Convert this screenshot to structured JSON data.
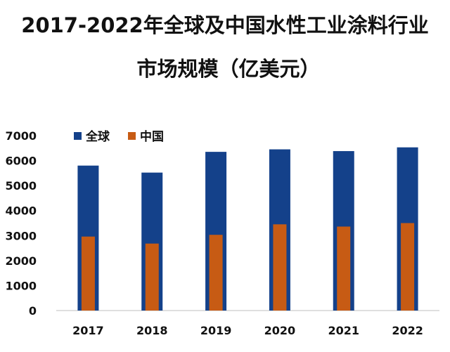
{
  "page": {
    "title_line1": "2017-2022年全球及中国水性工业涂料行业",
    "title_line2": "市场规模（亿美元）"
  },
  "colors": {
    "global": "#14418a",
    "china": "#c75b14",
    "axis": "#bfbfbf",
    "text": "#111111"
  },
  "chart_data": {
    "type": "bar",
    "title": "2017-2022年全球及中国水性工业涂料行业市场规模（亿美元）",
    "categories": [
      "2017",
      "2018",
      "2019",
      "2020",
      "2021",
      "2022"
    ],
    "series": [
      {
        "name": "全球",
        "values": [
          5800,
          5520,
          6350,
          6450,
          6380,
          6530
        ]
      },
      {
        "name": "中国",
        "values": [
          2960,
          2680,
          3030,
          3450,
          3360,
          3500
        ]
      }
    ],
    "ylim": [
      0,
      7000
    ],
    "yticks": [
      "0",
      "1000",
      "2000",
      "3000",
      "4000",
      "5000",
      "6000",
      "7000"
    ],
    "grid": false,
    "legend_position": "top-left",
    "xlabel": "",
    "ylabel": ""
  }
}
